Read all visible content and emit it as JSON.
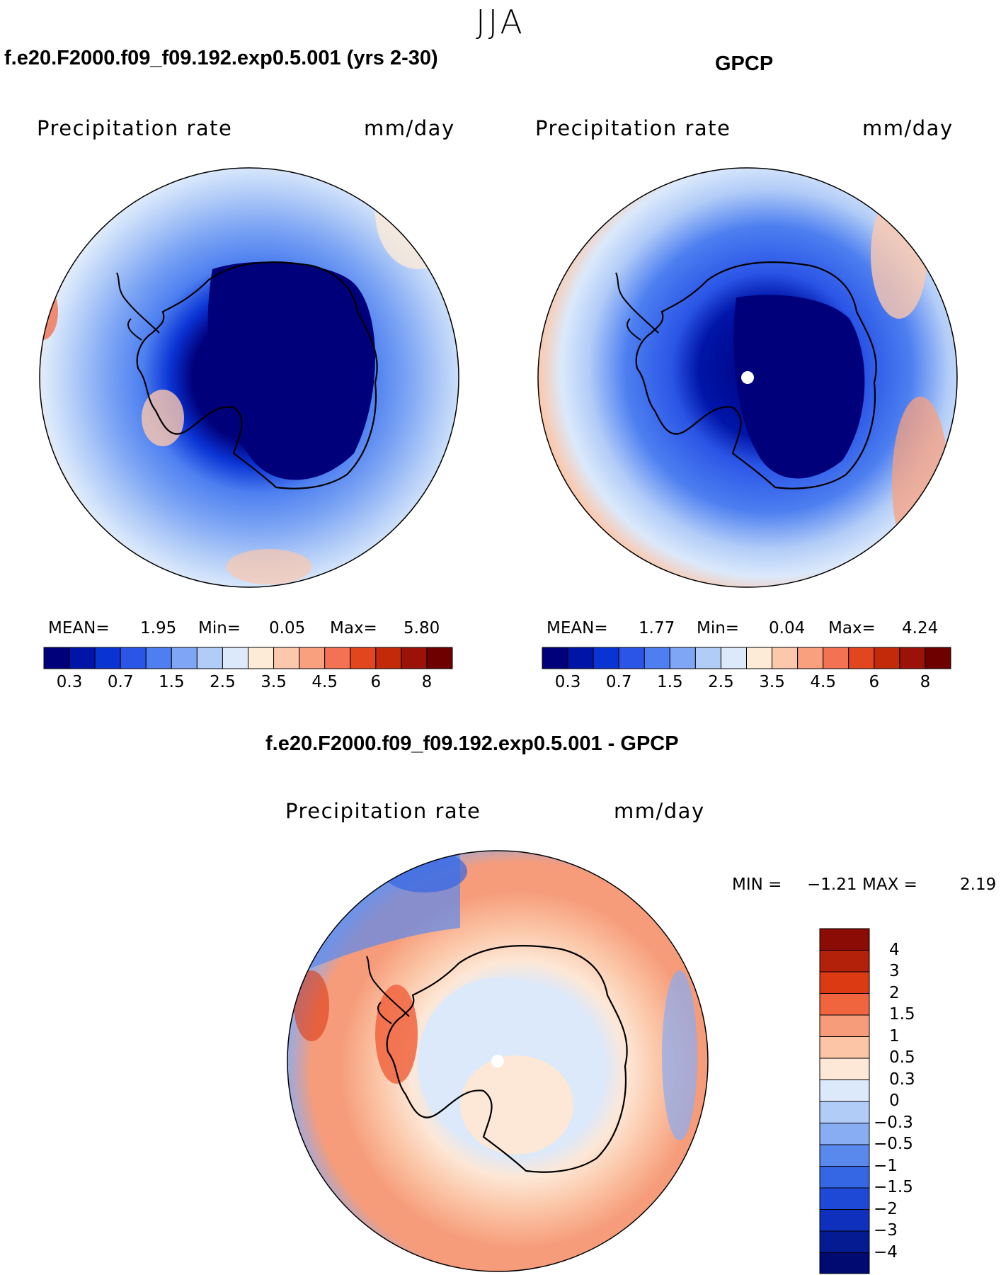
{
  "season": "JJA",
  "panels": [
    {
      "id": "model",
      "title": "f.e20.F2000.f09_f09.192.exp0.5.001 (yrs 2-30)",
      "variable": "Precipitation rate",
      "units": "mm/day",
      "stats": {
        "mean_label": "MEAN=",
        "mean": "1.95",
        "min_label": "Min=",
        "min": "0.05",
        "max_label": "Max=",
        "max": "5.80"
      }
    },
    {
      "id": "obs",
      "title": "GPCP",
      "variable": "Precipitation rate",
      "units": "mm/day",
      "stats": {
        "mean_label": "MEAN=",
        "mean": "1.77",
        "min_label": "Min=",
        "min": "0.04",
        "max_label": "Max=",
        "max": "4.24"
      }
    },
    {
      "id": "diff",
      "title": "f.e20.F2000.f09_f09.192.exp0.5.001 - GPCP",
      "variable": "Precipitation rate",
      "units": "mm/day",
      "stats": {
        "min_label": "MIN =",
        "min": "−1.21",
        "max_label": "MAX =",
        "max": "2.19"
      }
    }
  ],
  "abs_colorbar": {
    "colors": [
      "#00007a",
      "#0015a8",
      "#0a33d4",
      "#2a55e6",
      "#4d7ff0",
      "#7ea6f4",
      "#b2ccf8",
      "#dbe9fb",
      "#fdebd8",
      "#fcc8ac",
      "#f9a07e",
      "#f27253",
      "#e2461f",
      "#c22a0a",
      "#9b1208",
      "#6e0000"
    ],
    "tick_labels": [
      "0.3",
      "0.7",
      "1.5",
      "2.5",
      "3.5",
      "4.5",
      "6",
      "8"
    ]
  },
  "diff_colorbar": {
    "colors": [
      "#8a0c05",
      "#b3210a",
      "#dc3a12",
      "#f0643e",
      "#f69c7a",
      "#fbc5a6",
      "#fde7d6",
      "#dbe9fb",
      "#b2ccf8",
      "#89adf3",
      "#5a89ee",
      "#3566e4",
      "#1e49d6",
      "#0f2fbd",
      "#041b92"
    ],
    "tick_labels": [
      "4",
      "3",
      "2",
      "1.5",
      "1",
      "0.5",
      "0.3",
      "0",
      "−0.3",
      "−0.5",
      "−1",
      "−1.5",
      "−2",
      "−3",
      "−4"
    ]
  },
  "map_description_colors": {
    "land_outline": "#000000",
    "pole_marker": "#ffffff"
  }
}
